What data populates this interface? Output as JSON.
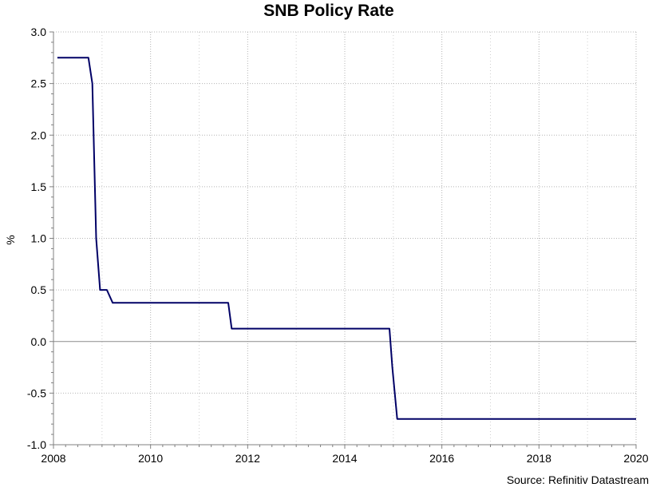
{
  "chart_data": {
    "type": "line",
    "title": "SNB Policy Rate",
    "ylabel": "%",
    "xlabel": "",
    "source": "Source: Refinitiv Datastream",
    "xlim": [
      2008,
      2020
    ],
    "ylim": [
      -1.0,
      3.0
    ],
    "x_ticks": [
      2008,
      2010,
      2012,
      2014,
      2016,
      2018,
      2020
    ],
    "x_tick_labels": [
      "2008",
      "2010",
      "2012",
      "2014",
      "2016",
      "2018",
      "2020"
    ],
    "y_ticks": [
      -1.0,
      -0.5,
      0.0,
      0.5,
      1.0,
      1.5,
      2.0,
      2.5,
      3.0
    ],
    "y_tick_labels": [
      "-1.0",
      "-0.5",
      "0.0",
      "0.5",
      "1.0",
      "1.5",
      "2.0",
      "2.5",
      "3.0"
    ],
    "grid": true,
    "zero_line": true,
    "legend": "none",
    "series": [
      {
        "color": "#000066",
        "x": [
          2008.08,
          2008.72,
          2008.8,
          2008.88,
          2008.96,
          2009.1,
          2009.22,
          2011.6,
          2011.67,
          2014.92,
          2014.98,
          2015.08,
          2020.0
        ],
        "y": [
          2.75,
          2.75,
          2.5,
          1.0,
          0.5,
          0.5,
          0.375,
          0.375,
          0.125,
          0.125,
          -0.25,
          -0.75,
          -0.75
        ]
      }
    ]
  }
}
